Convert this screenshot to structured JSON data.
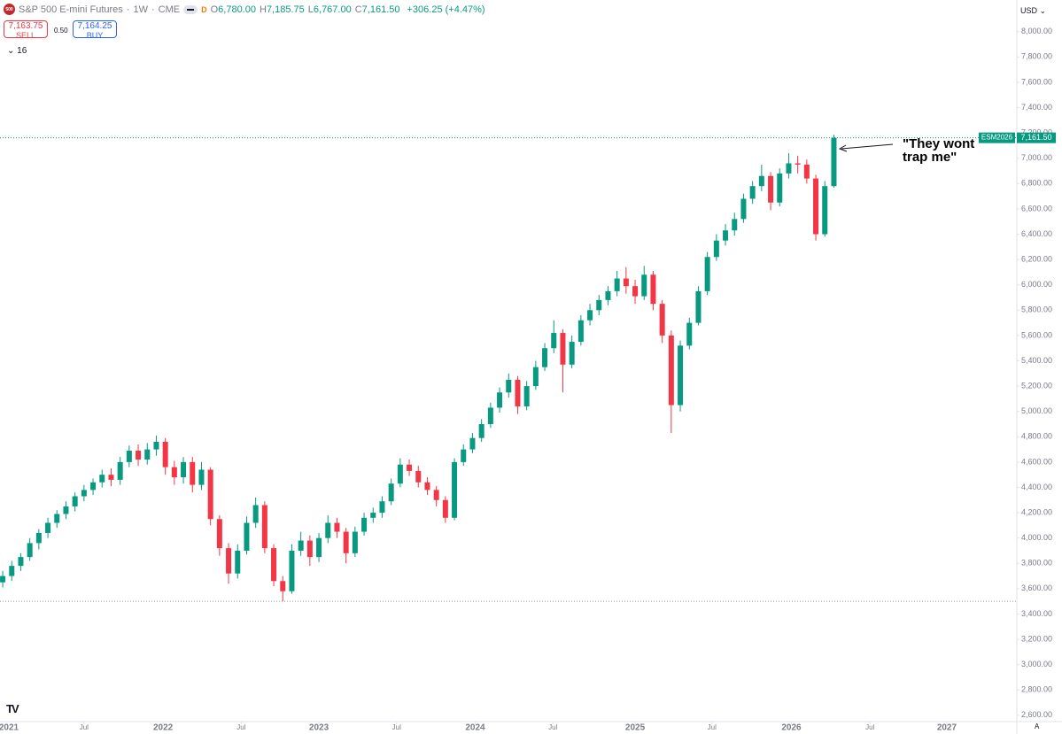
{
  "header": {
    "logo": "500",
    "title": "S&P 500 E-mini Futures",
    "interval": "1W",
    "exchange": "CME",
    "flag": "D",
    "ohlc": [
      {
        "key": "O",
        "value": "6,780.00"
      },
      {
        "key": "H",
        "value": "7,185.75"
      },
      {
        "key": "L",
        "value": "6,767.00"
      },
      {
        "key": "C",
        "value": "7,161.50"
      }
    ],
    "change": "+306.25 (+4.47%)"
  },
  "trade": {
    "sell_price": "7,163.75",
    "sell": "SELL",
    "spread": "0.50",
    "buy_price": "7,164.25",
    "buy": "BUY"
  },
  "indicators": "16",
  "currency": "USD",
  "scale_mode": "A",
  "annotation": [
    "\"They wont",
    "trap me\""
  ],
  "chart_data": {
    "type": "candlestick",
    "symbol": "ESM2026",
    "last_price_label": "7,161.50",
    "up_color": "#089981",
    "down_color": "#f23645",
    "horizontal_line": 3500,
    "xlim": [
      -0.3,
      112.25
    ],
    "ylim": [
      2550,
      8250
    ],
    "xticks": [
      {
        "value": 0.5,
        "label": "2021"
      },
      {
        "value": 9,
        "label": "Jul"
      },
      {
        "value": 17.75,
        "label": "2022"
      },
      {
        "value": 26.4,
        "label": "Jul"
      },
      {
        "value": 35,
        "label": "2023"
      },
      {
        "value": 43.6,
        "label": "Jul"
      },
      {
        "value": 52.3,
        "label": "2024"
      },
      {
        "value": 60.9,
        "label": "Jul"
      },
      {
        "value": 70,
        "label": "2025"
      },
      {
        "value": 78.5,
        "label": "Jul"
      },
      {
        "value": 87.3,
        "label": "2026"
      },
      {
        "value": 96,
        "label": "Jul"
      },
      {
        "value": 104.5,
        "label": "2027"
      }
    ],
    "yticks": [
      {
        "value": 8000,
        "label": "8,000.00"
      },
      {
        "value": 7800,
        "label": "7,800.00"
      },
      {
        "value": 7600,
        "label": "7,600.00"
      },
      {
        "value": 7400,
        "label": "7,400.00"
      },
      {
        "value": 7200,
        "label": "7,200.00"
      },
      {
        "value": 7000,
        "label": "7,000.00"
      },
      {
        "value": 6800,
        "label": "6,800.00"
      },
      {
        "value": 6600,
        "label": "6,600.00"
      },
      {
        "value": 6400,
        "label": "6,400.00"
      },
      {
        "value": 6200,
        "label": "6,200.00"
      },
      {
        "value": 6000,
        "label": "6,000.00"
      },
      {
        "value": 5800,
        "label": "5,800.00"
      },
      {
        "value": 5600,
        "label": "5,600.00"
      },
      {
        "value": 5400,
        "label": "5,400.00"
      },
      {
        "value": 5200,
        "label": "5,200.00"
      },
      {
        "value": 5000,
        "label": "5,000.00"
      },
      {
        "value": 4800,
        "label": "4,800.00"
      },
      {
        "value": 4600,
        "label": "4,600.00"
      },
      {
        "value": 4400,
        "label": "4,400.00"
      },
      {
        "value": 4200,
        "label": "4,200.00"
      },
      {
        "value": 4000,
        "label": "4,000.00"
      },
      {
        "value": 3800,
        "label": "3,800.00"
      },
      {
        "value": 3600,
        "label": "3,600.00"
      },
      {
        "value": 3400,
        "label": "3,400.00"
      },
      {
        "value": 3200,
        "label": "3,200.00"
      },
      {
        "value": 3000,
        "label": "3,000.00"
      },
      {
        "value": 2800,
        "label": "2,800.00"
      },
      {
        "value": 2600,
        "label": "2,600.00"
      }
    ],
    "open": [
      3650,
      3700,
      3780,
      3850,
      3960,
      4040,
      4120,
      4190,
      4250,
      4330,
      4380,
      4440,
      4500,
      4460,
      4600,
      4690,
      4620,
      4700,
      4760,
      4560,
      4480,
      4600,
      4420,
      4540,
      4150,
      3920,
      3720,
      3900,
      4120,
      4260,
      3920,
      3660,
      3580,
      3900,
      3980,
      3850,
      4000,
      4120,
      4050,
      3880,
      4050,
      4160,
      4200,
      4290,
      4430,
      4580,
      4530,
      4440,
      4380,
      4300,
      4160,
      4600,
      4700,
      4790,
      4900,
      5030,
      5150,
      5250,
      5040,
      5200,
      5350,
      5500,
      5620,
      5370,
      5550,
      5720,
      5800,
      5880,
      5950,
      6050,
      5990,
      5910,
      6080,
      5850,
      5600,
      5050,
      5520,
      5700,
      5950,
      6220,
      6350,
      6430,
      6520,
      6680,
      6780,
      6860,
      6650,
      6880,
      6960,
      6950,
      6840,
      6400,
      6780
    ],
    "high": [
      3740,
      3820,
      3880,
      4000,
      4070,
      4160,
      4220,
      4290,
      4360,
      4420,
      4470,
      4540,
      4550,
      4640,
      4730,
      4740,
      4750,
      4810,
      4790,
      4610,
      4640,
      4640,
      4600,
      4560,
      4180,
      3960,
      3950,
      4170,
      4320,
      4290,
      3950,
      3700,
      3950,
      4050,
      4020,
      4040,
      4180,
      4160,
      4080,
      4090,
      4200,
      4240,
      4330,
      4470,
      4630,
      4620,
      4570,
      4480,
      4410,
      4330,
      4630,
      4740,
      4830,
      4940,
      5070,
      5190,
      5300,
      5280,
      5240,
      5400,
      5540,
      5720,
      5650,
      5600,
      5760,
      5850,
      5920,
      5990,
      6110,
      6140,
      6040,
      6150,
      6110,
      5880,
      5640,
      5560,
      5740,
      5990,
      6260,
      6400,
      6480,
      6570,
      6720,
      6820,
      6950,
      6890,
      6920,
      7040,
      7020,
      6990,
      6870,
      6820,
      7185.75
    ],
    "low": [
      3610,
      3660,
      3740,
      3820,
      3910,
      4000,
      4080,
      4150,
      4210,
      4290,
      4340,
      4400,
      4410,
      4420,
      4560,
      4570,
      4580,
      4650,
      4500,
      4420,
      4430,
      4360,
      4380,
      4100,
      3860,
      3640,
      3680,
      3870,
      4080,
      3880,
      3620,
      3500,
      3560,
      3860,
      3780,
      3810,
      3960,
      4000,
      3800,
      3850,
      4020,
      4120,
      4160,
      4260,
      4400,
      4490,
      4400,
      4340,
      4250,
      4120,
      4140,
      4570,
      4670,
      4760,
      4870,
      4990,
      5110,
      4980,
      5010,
      5170,
      5320,
      5460,
      5150,
      5340,
      5520,
      5680,
      5760,
      5840,
      5910,
      5930,
      5850,
      5880,
      5800,
      5540,
      4830,
      5000,
      5490,
      5680,
      5920,
      6190,
      6310,
      6390,
      6490,
      6640,
      6740,
      6590,
      6620,
      6840,
      6880,
      6800,
      6350,
      6380,
      6767
    ],
    "close": [
      3700,
      3780,
      3850,
      3960,
      4040,
      4120,
      4190,
      4250,
      4330,
      4380,
      4440,
      4500,
      4460,
      4600,
      4690,
      4620,
      4700,
      4760,
      4560,
      4480,
      4600,
      4420,
      4540,
      4150,
      3920,
      3720,
      3900,
      4120,
      4260,
      3920,
      3660,
      3580,
      3900,
      3980,
      3850,
      4000,
      4120,
      4050,
      3880,
      4050,
      4160,
      4200,
      4290,
      4430,
      4580,
      4530,
      4440,
      4380,
      4300,
      4160,
      4600,
      4700,
      4790,
      4900,
      5030,
      5150,
      5250,
      5040,
      5200,
      5350,
      5500,
      5620,
      5370,
      5550,
      5720,
      5800,
      5880,
      5950,
      6050,
      5990,
      5910,
      6080,
      5850,
      5600,
      5050,
      5520,
      5700,
      5950,
      6220,
      6350,
      6430,
      6520,
      6680,
      6780,
      6860,
      6650,
      6880,
      6960,
      6950,
      6840,
      6400,
      6780,
      7161.5
    ]
  }
}
